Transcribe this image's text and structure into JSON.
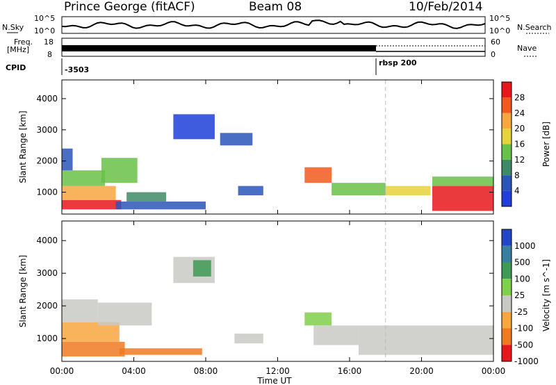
{
  "header": {
    "station": "Prince George (fitACF)",
    "beam": "Beam 08",
    "date": "10/Feb/2014"
  },
  "top_panels": {
    "nsky_label": "N.Sky",
    "nsearch_label": "N.Search",
    "scale_hi": "10^5",
    "scale_lo": "10^0",
    "freq_label_1": "Freq.",
    "freq_label_2": "[MHz]",
    "freq_hi": "18",
    "freq_lo": "8",
    "nave_hi": "60",
    "nave_lo": "0",
    "nave_label": "Nave",
    "cpid_label": "CPID",
    "cpid_1": "-3503",
    "cpid_2": "rbsp 200"
  },
  "chart_data": [
    {
      "type": "heatmap",
      "title": "Power",
      "xlabel": "",
      "ylabel": "Slant Range [km]",
      "x_ticks": [
        "00:00",
        "04:00",
        "08:00",
        "12:00",
        "16:00",
        "20:00",
        "00:00"
      ],
      "y_ticks": [
        "1000",
        "2000",
        "3000",
        "4000"
      ],
      "ylim": [
        300,
        4600
      ],
      "colorbar_label": "Power [dB]",
      "colorbar_ticks": [
        "4",
        "8",
        "12",
        "16",
        "20",
        "24",
        "28"
      ],
      "colorbar_colors": [
        "#1f3fd8",
        "#2a55b8",
        "#3f8a66",
        "#68c148",
        "#e6d23a",
        "#f7a640",
        "#f2591f",
        "#e8171b"
      ],
      "regions": [
        {
          "x0": 0.0,
          "x1": 3.3,
          "y0": 450,
          "y1": 750,
          "level": 7
        },
        {
          "x0": 0.0,
          "x1": 3.0,
          "y0": 750,
          "y1": 1200,
          "level": 5
        },
        {
          "x0": 0.0,
          "x1": 2.4,
          "y0": 1200,
          "y1": 1700,
          "level": 3
        },
        {
          "x0": 0.0,
          "x1": 0.6,
          "y0": 1700,
          "y1": 2400,
          "level": 1
        },
        {
          "x0": 2.2,
          "x1": 4.2,
          "y0": 1300,
          "y1": 2100,
          "level": 3
        },
        {
          "x0": 3.0,
          "x1": 8.0,
          "y0": 450,
          "y1": 700,
          "level": 1
        },
        {
          "x0": 3.6,
          "x1": 5.8,
          "y0": 700,
          "y1": 1000,
          "level": 2
        },
        {
          "x0": 6.2,
          "x1": 8.5,
          "y0": 2700,
          "y1": 3500,
          "level": 0
        },
        {
          "x0": 8.8,
          "x1": 10.6,
          "y0": 2500,
          "y1": 2900,
          "level": 1
        },
        {
          "x0": 9.8,
          "x1": 11.2,
          "y0": 900,
          "y1": 1200,
          "level": 1
        },
        {
          "x0": 13.5,
          "x1": 15.0,
          "y0": 1300,
          "y1": 1800,
          "level": 6
        },
        {
          "x0": 15.0,
          "x1": 18.0,
          "y0": 900,
          "y1": 1300,
          "level": 3
        },
        {
          "x0": 18.0,
          "x1": 20.5,
          "y0": 900,
          "y1": 1200,
          "level": 4
        },
        {
          "x0": 20.6,
          "x1": 24.0,
          "y0": 400,
          "y1": 1200,
          "level": 7
        },
        {
          "x0": 20.6,
          "x1": 24.0,
          "y0": 1200,
          "y1": 1500,
          "level": 3
        }
      ]
    },
    {
      "type": "heatmap",
      "title": "Velocity",
      "xlabel": "Time UT",
      "ylabel": "Slant Range [km]",
      "x_ticks": [
        "00:00",
        "04:00",
        "08:00",
        "12:00",
        "16:00",
        "20:00",
        "00:00"
      ],
      "y_ticks": [
        "1000",
        "2000",
        "3000",
        "4000"
      ],
      "ylim": [
        300,
        4600
      ],
      "colorbar_label": "Velocity [m s^-1]",
      "colorbar_ticks": [
        "1000",
        "500",
        "100",
        "25",
        "-25",
        "-100",
        "-500",
        "-1000"
      ],
      "colorbar_colors": [
        "#2346c8",
        "#3a7fa0",
        "#3f9a55",
        "#7fd04a",
        "#c9c9c4",
        "#f7a640",
        "#ee7a22",
        "#e8171b"
      ],
      "regions": [
        {
          "x0": 0.0,
          "x1": 3.5,
          "y0": 450,
          "y1": 900,
          "level": 6
        },
        {
          "x0": 0.0,
          "x1": 3.2,
          "y0": 900,
          "y1": 1500,
          "level": 5
        },
        {
          "x0": 0.0,
          "x1": 2.0,
          "y0": 1500,
          "y1": 2200,
          "level": 4
        },
        {
          "x0": 2.0,
          "x1": 5.0,
          "y0": 1400,
          "y1": 2100,
          "level": 4
        },
        {
          "x0": 3.2,
          "x1": 7.8,
          "y0": 500,
          "y1": 700,
          "level": 6
        },
        {
          "x0": 6.2,
          "x1": 8.5,
          "y0": 2700,
          "y1": 3500,
          "level": 4
        },
        {
          "x0": 7.3,
          "x1": 8.3,
          "y0": 2900,
          "y1": 3400,
          "level": 2
        },
        {
          "x0": 9.6,
          "x1": 11.2,
          "y0": 850,
          "y1": 1150,
          "level": 4
        },
        {
          "x0": 13.5,
          "x1": 15.0,
          "y0": 1400,
          "y1": 1800,
          "level": 3
        },
        {
          "x0": 14.0,
          "x1": 16.5,
          "y0": 800,
          "y1": 1400,
          "level": 4
        },
        {
          "x0": 16.5,
          "x1": 24.0,
          "y0": 500,
          "y1": 1400,
          "level": 4
        }
      ]
    }
  ]
}
